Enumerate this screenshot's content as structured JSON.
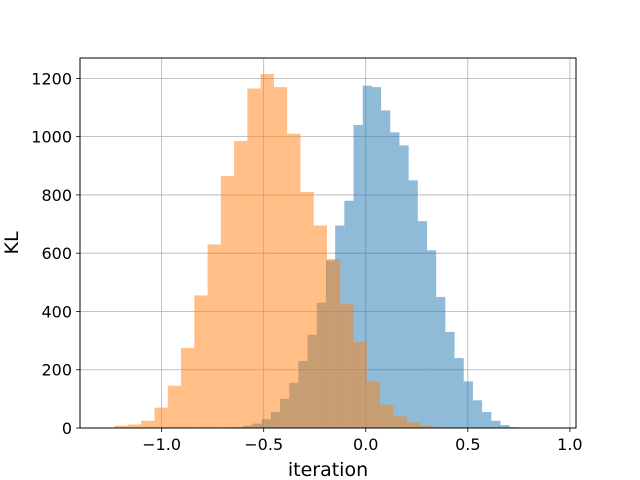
{
  "chart_data": {
    "type": "histogram",
    "xlabel": "iteration",
    "ylabel": "KL",
    "xlim": [
      -1.4,
      1.03
    ],
    "ylim": [
      0,
      1270
    ],
    "xticks": [
      -1.0,
      -0.5,
      0.0,
      0.5,
      1.0
    ],
    "xtick_labels": [
      "−1.0",
      "−0.5",
      "0.0",
      "0.5",
      "1.0"
    ],
    "yticks": [
      0,
      200,
      400,
      600,
      800,
      1000,
      1200
    ],
    "ytick_labels": [
      "0",
      "200",
      "400",
      "600",
      "800",
      "1000",
      "1200"
    ],
    "grid": true,
    "series": [
      {
        "color": "#1f77b4",
        "alpha": 0.5,
        "bin_edges": [
          -0.69,
          -0.645,
          -0.6,
          -0.555,
          -0.51,
          -0.465,
          -0.42,
          -0.375,
          -0.33,
          -0.285,
          -0.24,
          -0.195,
          -0.15,
          -0.105,
          -0.06,
          -0.015,
          0.03,
          0.075,
          0.12,
          0.165,
          0.21,
          0.255,
          0.3,
          0.345,
          0.39,
          0.435,
          0.48,
          0.525,
          0.57,
          0.615,
          0.66,
          0.705,
          0.75
        ],
        "counts": [
          2,
          3,
          8,
          15,
          30,
          55,
          100,
          155,
          230,
          320,
          430,
          575,
          695,
          780,
          1040,
          1175,
          1170,
          1090,
          1015,
          970,
          850,
          710,
          610,
          450,
          330,
          240,
          160,
          95,
          55,
          25,
          10,
          3
        ]
      },
      {
        "color": "#ff7f0e",
        "alpha": 0.5,
        "bin_edges": [
          -1.23,
          -1.165,
          -1.1,
          -1.035,
          -0.97,
          -0.905,
          -0.84,
          -0.775,
          -0.71,
          -0.645,
          -0.58,
          -0.515,
          -0.45,
          -0.385,
          -0.32,
          -0.255,
          -0.19,
          -0.125,
          -0.06,
          0.005,
          0.07,
          0.135,
          0.2,
          0.265,
          0.33,
          0.395
        ],
        "counts": [
          8,
          12,
          25,
          70,
          145,
          275,
          455,
          630,
          865,
          985,
          1165,
          1215,
          1170,
          1010,
          810,
          695,
          580,
          425,
          295,
          160,
          80,
          40,
          20,
          8,
          3
        ]
      }
    ]
  }
}
